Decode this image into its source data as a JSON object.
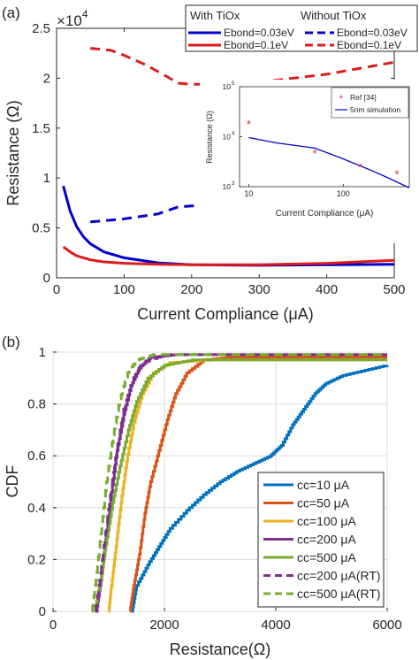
{
  "chart_data": [
    {
      "panel": "(a)",
      "type": "line",
      "xlabel": "Current Compliance (μA)",
      "ylabel": "Resistance (Ω)",
      "y_exponent": "×10",
      "y_exponent_power": "4",
      "xlim": [
        0,
        500
      ],
      "ylim": [
        0,
        25000
      ],
      "xticks": [
        0,
        100,
        200,
        300,
        400,
        500
      ],
      "yticks": [
        0,
        5000,
        10000,
        15000,
        20000,
        25000
      ],
      "ytick_labels": [
        "0",
        "0.5",
        "1",
        "1.5",
        "2",
        "2.5"
      ],
      "legend": {
        "position": "top-right",
        "group_titles": [
          "With TiOx",
          "Without TiOx"
        ],
        "entries": [
          "Ebond=0.03eV",
          "Ebond=0.1eV",
          "Ebond=0.03eV",
          "Ebond=0.1eV"
        ]
      },
      "colors": {
        "blue": "#0000cc",
        "red": "#dd1c1c"
      },
      "series": [
        {
          "name": "Ebond=0.03eV",
          "group": "With TiOx",
          "color": "#0000cc",
          "dash": "solid",
          "x": [
            10,
            20,
            30,
            40,
            50,
            70,
            100,
            150,
            200,
            300,
            400,
            500
          ],
          "y": [
            9200,
            6700,
            5100,
            4100,
            3400,
            2600,
            2000,
            1500,
            1300,
            1250,
            1300,
            1350
          ]
        },
        {
          "name": "Ebond=0.1eV",
          "group": "With TiOx",
          "color": "#dd1c1c",
          "dash": "solid",
          "x": [
            10,
            20,
            30,
            50,
            70,
            100,
            150,
            200,
            300,
            400,
            500
          ],
          "y": [
            3100,
            2600,
            2200,
            1800,
            1600,
            1450,
            1350,
            1300,
            1300,
            1450,
            1750
          ]
        },
        {
          "name": "Ebond=0.03eV",
          "group": "Without TiOx",
          "color": "#0000cc",
          "dash": "dashed",
          "x": [
            50,
            100,
            150,
            180,
            200,
            300,
            400,
            500
          ],
          "y": [
            5600,
            5900,
            6400,
            7100,
            7200,
            7200,
            6900,
            6600
          ]
        },
        {
          "name": "Ebond=0.1eV",
          "group": "Without TiOx",
          "color": "#dd1c1c",
          "dash": "dashed",
          "x": [
            50,
            80,
            100,
            130,
            160,
            180,
            200,
            250,
            300,
            350,
            400,
            450,
            500
          ],
          "y": [
            23000,
            22800,
            22300,
            21400,
            20300,
            19500,
            19400,
            19400,
            19600,
            20000,
            20400,
            21000,
            21600
          ]
        }
      ],
      "inset": {
        "type": "line",
        "xlabel": "Current Compliance (μA)",
        "ylabel": "Resistance (Ω)",
        "x_scale": "log",
        "y_scale": "log",
        "xlim": [
          8,
          500
        ],
        "ylim": [
          1000,
          100000
        ],
        "xticks": [
          10,
          100
        ],
        "xtick_labels": [
          "10",
          "100"
        ],
        "yticks": [
          1000,
          10000,
          100000
        ],
        "ytick_labels": [
          "10",
          "10",
          "10"
        ],
        "ytick_powers": [
          "3",
          "4",
          "5"
        ],
        "legend": [
          "Ref [34]",
          "5nm simulation"
        ],
        "reference_points": {
          "name": "Ref [34]",
          "x": [
            10,
            50,
            150,
            370
          ],
          "y": [
            18000,
            4700,
            2500,
            1800
          ],
          "marker": "*",
          "color": "#ee2222"
        },
        "simulation": {
          "name": "5nm simulation",
          "x": [
            10,
            20,
            50,
            100,
            200,
            300,
            500
          ],
          "y": [
            9600,
            7500,
            5900,
            3600,
            2100,
            1500,
            950
          ],
          "color": "#0000cc"
        }
      }
    },
    {
      "panel": "(b)",
      "type": "line",
      "xlabel": "Resistance(Ω)",
      "ylabel": "CDF",
      "xlim": [
        0,
        6000
      ],
      "ylim": [
        0,
        1
      ],
      "xticks": [
        0,
        2000,
        4000,
        6000
      ],
      "yticks": [
        0,
        0.2,
        0.4,
        0.6,
        0.8,
        1
      ],
      "ytick_labels": [
        "0",
        "0.2",
        "0.4",
        "0.6",
        "0.8",
        "1"
      ],
      "legend_position": "bottom-right",
      "series": [
        {
          "name": "cc=10 μA",
          "color": "#0072bd",
          "dash": "solid",
          "points": [
            [
              1420,
              0
            ],
            [
              1500,
              0.1
            ],
            [
              1700,
              0.18
            ],
            [
              1900,
              0.25
            ],
            [
              2100,
              0.32
            ],
            [
              2400,
              0.39
            ],
            [
              2700,
              0.45
            ],
            [
              3000,
              0.5
            ],
            [
              3300,
              0.54
            ],
            [
              3600,
              0.57
            ],
            [
              3900,
              0.6
            ],
            [
              4100,
              0.64
            ],
            [
              4300,
              0.72
            ],
            [
              4500,
              0.78
            ],
            [
              4700,
              0.84
            ],
            [
              4900,
              0.88
            ],
            [
              5200,
              0.91
            ],
            [
              5600,
              0.93
            ],
            [
              6000,
              0.95
            ]
          ]
        },
        {
          "name": "cc=50 μA",
          "color": "#d95319",
          "dash": "solid",
          "points": [
            [
              1380,
              0
            ],
            [
              1450,
              0.1
            ],
            [
              1550,
              0.22
            ],
            [
              1650,
              0.38
            ],
            [
              1750,
              0.5
            ],
            [
              1900,
              0.62
            ],
            [
              2050,
              0.74
            ],
            [
              2200,
              0.84
            ],
            [
              2400,
              0.92
            ],
            [
              2700,
              0.97
            ],
            [
              3200,
              0.98
            ],
            [
              4500,
              0.98
            ],
            [
              6000,
              0.98
            ]
          ]
        },
        {
          "name": "cc=100 μA",
          "color": "#edb120",
          "dash": "solid",
          "points": [
            [
              1000,
              0
            ],
            [
              1050,
              0.1
            ],
            [
              1130,
              0.25
            ],
            [
              1220,
              0.42
            ],
            [
              1320,
              0.58
            ],
            [
              1450,
              0.73
            ],
            [
              1600,
              0.84
            ],
            [
              1800,
              0.92
            ],
            [
              2100,
              0.96
            ],
            [
              2800,
              0.97
            ],
            [
              6000,
              0.97
            ]
          ]
        },
        {
          "name": "cc=200 μA",
          "color": "#7e2f8e",
          "dash": "solid",
          "points": [
            [
              780,
              0
            ],
            [
              860,
              0.12
            ],
            [
              950,
              0.28
            ],
            [
              1050,
              0.46
            ],
            [
              1150,
              0.62
            ],
            [
              1270,
              0.76
            ],
            [
              1400,
              0.87
            ],
            [
              1550,
              0.94
            ],
            [
              1750,
              0.98
            ],
            [
              2200,
              0.99
            ],
            [
              6000,
              0.99
            ]
          ]
        },
        {
          "name": "cc=500 μA",
          "color": "#77ac30",
          "dash": "solid",
          "points": [
            [
              750,
              0
            ],
            [
              850,
              0.12
            ],
            [
              950,
              0.26
            ],
            [
              1070,
              0.42
            ],
            [
              1200,
              0.56
            ],
            [
              1350,
              0.7
            ],
            [
              1500,
              0.81
            ],
            [
              1700,
              0.9
            ],
            [
              2000,
              0.95
            ],
            [
              2500,
              0.97
            ],
            [
              6000,
              0.97
            ]
          ]
        },
        {
          "name": "cc=200 μA(RT)",
          "color": "#7e2f8e",
          "dash": "dashed",
          "points": [
            [
              760,
              0
            ],
            [
              840,
              0.12
            ],
            [
              930,
              0.28
            ],
            [
              1030,
              0.45
            ],
            [
              1140,
              0.62
            ],
            [
              1270,
              0.78
            ],
            [
              1420,
              0.89
            ],
            [
              1600,
              0.96
            ],
            [
              2000,
              0.99
            ],
            [
              6000,
              0.99
            ]
          ]
        },
        {
          "name": "cc=500 μA(RT)",
          "color": "#77ac30",
          "dash": "dashed",
          "points": [
            [
              700,
              0
            ],
            [
              770,
              0.12
            ],
            [
              860,
              0.3
            ],
            [
              960,
              0.5
            ],
            [
              1080,
              0.68
            ],
            [
              1200,
              0.82
            ],
            [
              1340,
              0.92
            ],
            [
              1500,
              0.97
            ],
            [
              1800,
              0.99
            ],
            [
              6000,
              0.99
            ]
          ]
        }
      ]
    }
  ]
}
